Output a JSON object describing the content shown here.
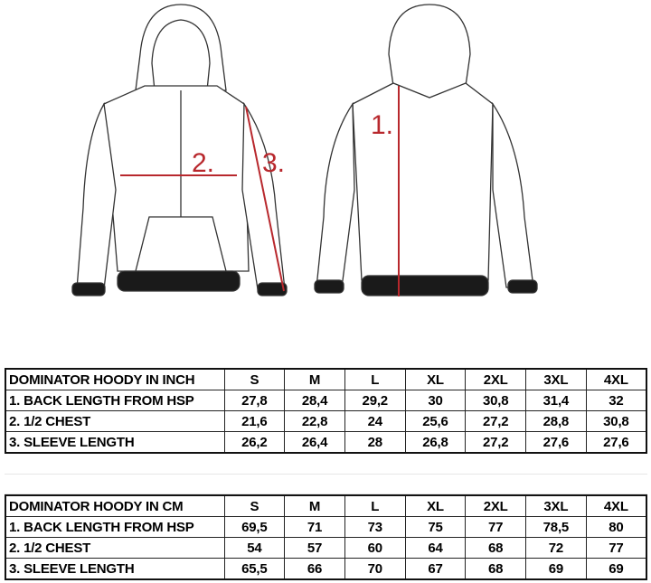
{
  "diagram": {
    "labels": {
      "back_length": "1.",
      "chest": "2.",
      "sleeve": "3."
    },
    "colors": {
      "measure_line": "#b8282d",
      "outline": "#333333",
      "rib": "#1a1a1a"
    }
  },
  "inch_table": {
    "headers": [
      "DOMINATOR HOODY IN INCH",
      "S",
      "M",
      "L",
      "XL",
      "2XL",
      "3XL",
      "4XL"
    ],
    "rows": [
      [
        "1. BACK LENGTH FROM HSP",
        "27,8",
        "28,4",
        "29,2",
        "30",
        "30,8",
        "31,4",
        "32"
      ],
      [
        "2. 1/2 CHEST",
        "21,6",
        "22,8",
        "24",
        "25,6",
        "27,2",
        "28,8",
        "30,8"
      ],
      [
        "3. SLEEVE LENGTH",
        "26,2",
        "26,4",
        "28",
        "26,8",
        "27,2",
        "27,6",
        "27,6"
      ]
    ]
  },
  "cm_table": {
    "headers": [
      "DOMINATOR HOODY IN CM",
      "S",
      "M",
      "L",
      "XL",
      "2XL",
      "3XL",
      "4XL"
    ],
    "rows": [
      [
        "1. BACK LENGTH FROM HSP",
        "69,5",
        "71",
        "73",
        "75",
        "77",
        "78,5",
        "80"
      ],
      [
        "2. 1/2 CHEST",
        "54",
        "57",
        "60",
        "64",
        "68",
        "72",
        "77"
      ],
      [
        "3. SLEEVE LENGTH",
        "65,5",
        "66",
        "70",
        "67",
        "68",
        "69",
        "69"
      ]
    ]
  }
}
